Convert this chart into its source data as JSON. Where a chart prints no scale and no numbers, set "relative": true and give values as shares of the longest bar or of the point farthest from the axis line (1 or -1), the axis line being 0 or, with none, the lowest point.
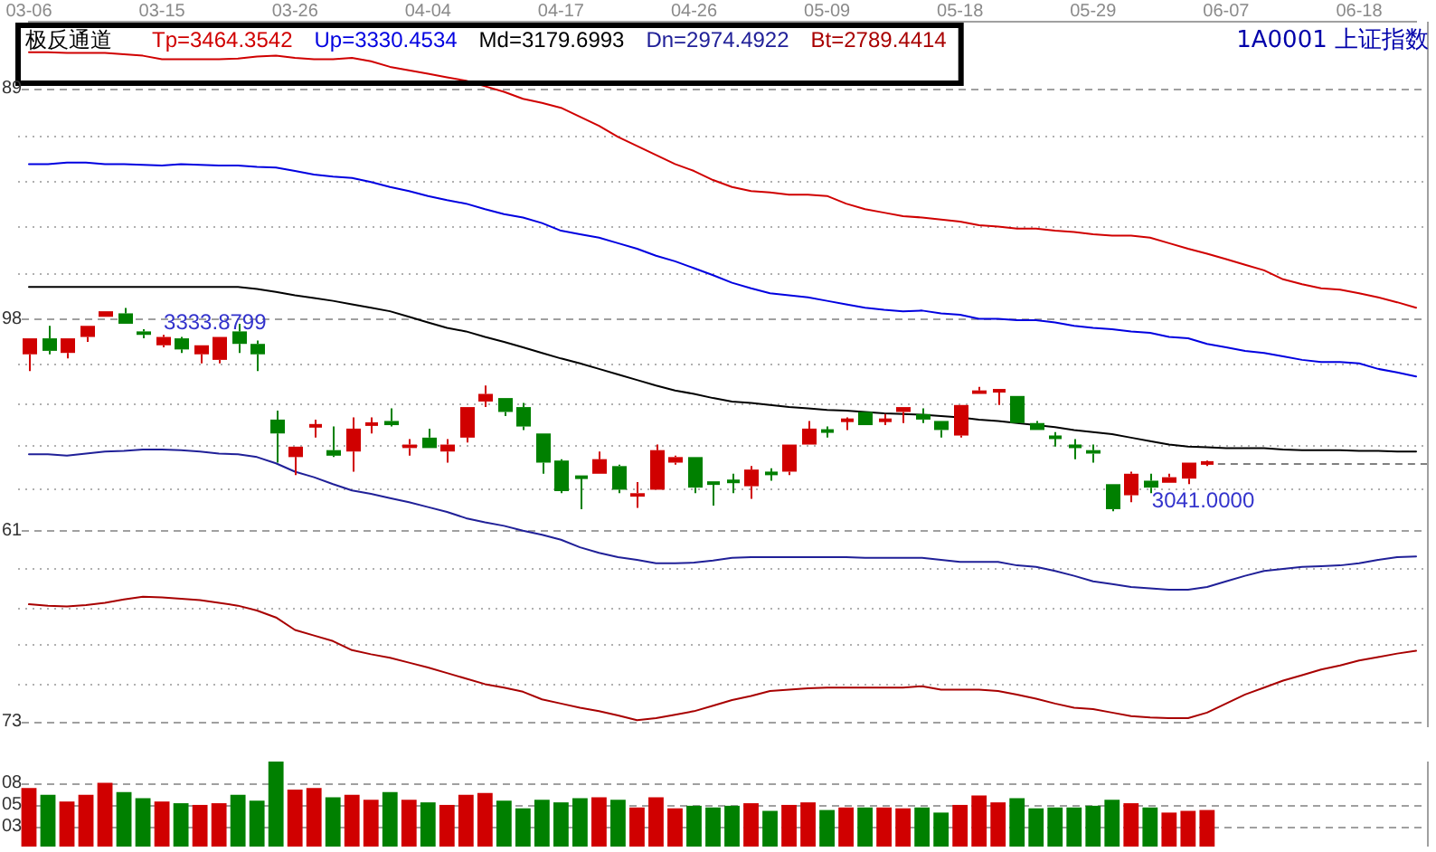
{
  "chart_data": [
    {
      "type": "candlestick",
      "title": "极反通道",
      "categories": [
        "03-06",
        null,
        null,
        null,
        null,
        null,
        null,
        "03-15",
        null,
        null,
        null,
        null,
        null,
        null,
        "03-26",
        null,
        null,
        null,
        null,
        null,
        null,
        "04-04",
        null,
        null,
        null,
        null,
        null,
        null,
        "04-17",
        null,
        null,
        null,
        null,
        null,
        null,
        "04-26",
        null,
        null,
        null,
        null,
        null,
        null,
        "05-09",
        null,
        null,
        null,
        null,
        null,
        null,
        "05-18",
        null,
        null,
        null,
        null,
        null,
        null,
        "05-29",
        null,
        null,
        null,
        null,
        null,
        null,
        "06-07",
        null,
        null,
        null,
        null,
        null,
        null,
        "06-18",
        null,
        null,
        null
      ],
      "ohlc": [
        [
          3267,
          3290,
          3243,
          3290
        ],
        [
          3290,
          3308,
          3267,
          3272
        ],
        [
          3269,
          3290,
          3261,
          3290
        ],
        [
          3292,
          3308,
          3285,
          3308
        ],
        [
          3321,
          3329,
          3321,
          3329
        ],
        [
          3326,
          3333.8799,
          3311,
          3311
        ],
        [
          3300,
          3303,
          3290,
          3295
        ],
        [
          3280,
          3295,
          3277,
          3292
        ],
        [
          3290,
          3292,
          3269,
          3274
        ],
        [
          3267,
          3280,
          3254,
          3280
        ],
        [
          3259,
          3292,
          3254,
          3292
        ],
        [
          3300,
          3311,
          3269,
          3282
        ],
        [
          3282,
          3287,
          3243,
          3267
        ],
        [
          3173,
          3186,
          3111,
          3153
        ],
        [
          3119,
          3134,
          3093,
          3134
        ],
        [
          3163,
          3173,
          3147,
          3165
        ],
        [
          3129,
          3163,
          3119,
          3121
        ],
        [
          3127,
          3176,
          3098,
          3160
        ],
        [
          3165,
          3176,
          3153,
          3168
        ],
        [
          3171,
          3189,
          3163,
          3165
        ],
        [
          3132,
          3145,
          3121,
          3137
        ],
        [
          3147,
          3160,
          3132,
          3132
        ],
        [
          3127,
          3145,
          3111,
          3137
        ],
        [
          3147,
          3191,
          3140,
          3191
        ],
        [
          3199,
          3222,
          3191,
          3210
        ],
        [
          3204,
          3204,
          3178,
          3184
        ],
        [
          3191,
          3197,
          3158,
          3163
        ],
        [
          3153,
          3153,
          3095,
          3111
        ],
        [
          3114,
          3116,
          3067,
          3070
        ],
        [
          3091,
          3091,
          3044,
          3089
        ],
        [
          3095,
          3127,
          3095,
          3116
        ],
        [
          3106,
          3108,
          3067,
          3072
        ],
        [
          3062,
          3083,
          3046,
          3067
        ],
        [
          3072,
          3137,
          3072,
          3129
        ],
        [
          3111,
          3121,
          3108,
          3119
        ],
        [
          3119,
          3119,
          3067,
          3075
        ],
        [
          3083,
          3083,
          3049,
          3080
        ],
        [
          3085,
          3095,
          3067,
          3083
        ],
        [
          3077,
          3106,
          3059,
          3101
        ],
        [
          3096,
          3103,
          3085,
          3095
        ],
        [
          3098,
          3137,
          3093,
          3137
        ],
        [
          3137,
          3171,
          3137,
          3160
        ],
        [
          3158,
          3163,
          3147,
          3155
        ],
        [
          3171,
          3176,
          3158,
          3173
        ],
        [
          3184,
          3184,
          3165,
          3165
        ],
        [
          3171,
          3181,
          3165,
          3173
        ],
        [
          3184,
          3191,
          3168,
          3191
        ],
        [
          3181,
          3189,
          3168,
          3173
        ],
        [
          3171,
          3171,
          3147,
          3158
        ],
        [
          3150,
          3194,
          3147,
          3194
        ],
        [
          3210,
          3220,
          3210,
          3215
        ],
        [
          3214,
          3215,
          3194,
          3215
        ],
        [
          3207,
          3207,
          3168,
          3168
        ],
        [
          3168,
          3171,
          3158,
          3158
        ],
        [
          3148,
          3155,
          3134,
          3147
        ],
        [
          3135,
          3145,
          3116,
          3134
        ],
        [
          3129,
          3137,
          3111,
          3124
        ],
        [
          3080,
          3080,
          3041,
          3044
        ],
        [
          3064,
          3098,
          3054,
          3095
        ],
        [
          3085,
          3095,
          3067,
          3075
        ],
        [
          3082,
          3095,
          3082,
          3090
        ],
        [
          3088,
          3111,
          3080,
          3111
        ],
        [
          3110,
          3114,
          3106,
          3111
        ],
        null,
        null,
        null,
        null,
        null,
        null,
        null,
        null,
        null,
        null,
        null
      ],
      "colors": [
        "#d00000",
        "#008000",
        "#d00000",
        "#d00000",
        "#d00000",
        "#008000",
        "#008000",
        "#d00000",
        "#008000",
        "#d00000",
        "#d00000",
        "#008000",
        "#008000",
        "#008000",
        "#d00000",
        "#d00000",
        "#008000",
        "#d00000",
        "#d00000",
        "#008000",
        "#d00000",
        "#008000",
        "#d00000",
        "#d00000",
        "#d00000",
        "#008000",
        "#008000",
        "#008000",
        "#008000",
        "#008000",
        "#d00000",
        "#008000",
        "#d00000",
        "#d00000",
        "#d00000",
        "#008000",
        "#008000",
        "#008000",
        "#d00000",
        "#008000",
        "#d00000",
        "#d00000",
        "#008000",
        "#d00000",
        "#008000",
        "#d00000",
        "#d00000",
        "#008000",
        "#008000",
        "#d00000",
        "#d00000",
        "#d00000",
        "#008000",
        "#008000",
        "#008000",
        "#008000",
        "#008000",
        "#008000",
        "#d00000",
        "#008000",
        "#d00000",
        "#d00000",
        "#d00000",
        null,
        null,
        null,
        null,
        null,
        null,
        null,
        null,
        null,
        null,
        null
      ],
      "series": [
        {
          "type": "line",
          "name": "Tp=3464.3542",
          "color": "#d00000",
          "values": [
            3702,
            3702,
            3701,
            3701,
            3701,
            3699,
            3697,
            3692,
            3692,
            3692,
            3692,
            3693,
            3696,
            3697,
            3694,
            3692,
            3692,
            3694,
            3689,
            3681,
            3676,
            3671,
            3666,
            3661,
            3653,
            3645,
            3635,
            3629,
            3622,
            3609,
            3596,
            3580,
            3567,
            3554,
            3541,
            3531,
            3518,
            3508,
            3502,
            3500,
            3497,
            3497,
            3495,
            3484,
            3476,
            3471,
            3466,
            3464,
            3461,
            3458,
            3453,
            3451,
            3448,
            3448,
            3445,
            3443,
            3440,
            3438,
            3438,
            3435,
            3427,
            3419,
            3412,
            3404,
            3396,
            3388,
            3375,
            3368,
            3362,
            3360,
            3355,
            3349,
            3342,
            3334
          ]
        },
        {
          "type": "line",
          "name": "Up=3330.4534",
          "color": "#0000e0",
          "values": [
            3541,
            3541,
            3543,
            3543,
            3541,
            3541,
            3540,
            3539,
            3541,
            3540,
            3539,
            3539,
            3537,
            3536,
            3531,
            3526,
            3523,
            3521,
            3515,
            3508,
            3502,
            3495,
            3489,
            3484,
            3476,
            3469,
            3464,
            3456,
            3445,
            3440,
            3435,
            3427,
            3419,
            3409,
            3401,
            3391,
            3381,
            3370,
            3362,
            3355,
            3352,
            3349,
            3344,
            3339,
            3334,
            3331,
            3329,
            3330,
            3326,
            3324,
            3318,
            3318,
            3316,
            3316,
            3313,
            3308,
            3305,
            3303,
            3300,
            3298,
            3292,
            3290,
            3282,
            3277,
            3272,
            3269,
            3264,
            3259,
            3256,
            3256,
            3254,
            3246,
            3241,
            3235
          ]
        },
        {
          "type": "line",
          "name": "Md=3179.6993",
          "color": "#000000",
          "values": [
            3364,
            3364,
            3364,
            3364,
            3364,
            3364,
            3364,
            3364,
            3364,
            3364,
            3364,
            3364,
            3361,
            3357,
            3352,
            3348,
            3344,
            3339,
            3334,
            3329,
            3321,
            3313,
            3305,
            3300,
            3292,
            3285,
            3277,
            3269,
            3261,
            3254,
            3246,
            3238,
            3230,
            3222,
            3215,
            3210,
            3204,
            3199,
            3197,
            3194,
            3191,
            3189,
            3187,
            3186,
            3184,
            3182,
            3181,
            3180,
            3178,
            3176,
            3173,
            3171,
            3168,
            3165,
            3162,
            3158,
            3155,
            3152,
            3147,
            3142,
            3137,
            3134,
            3133,
            3132,
            3132,
            3132,
            3130,
            3129,
            3129,
            3129,
            3128,
            3128,
            3127,
            3127
          ]
        },
        {
          "type": "line",
          "name": "Dn=2974.4922",
          "color": "#202098",
          "values": [
            3123,
            3123,
            3121,
            3124,
            3127,
            3128,
            3130,
            3130,
            3129,
            3127,
            3124,
            3123,
            3119,
            3110,
            3098,
            3090,
            3080,
            3071,
            3066,
            3060,
            3054,
            3047,
            3040,
            3031,
            3025,
            3020,
            3013,
            3007,
            3000,
            2989,
            2981,
            2975,
            2971,
            2966,
            2966,
            2967,
            2970,
            2974,
            2975,
            2975,
            2975,
            2975,
            2975,
            2975,
            2974,
            2974,
            2974,
            2974,
            2971,
            2968,
            2968,
            2968,
            2963,
            2961,
            2955,
            2948,
            2940,
            2936,
            2932,
            2930,
            2928,
            2928,
            2932,
            2940,
            2948,
            2955,
            2958,
            2961,
            2962,
            2963,
            2966,
            2971,
            2975,
            2976
          ]
        },
        {
          "type": "line",
          "name": "Bt=2789.4414",
          "color": "#a80000",
          "values": [
            2907,
            2905,
            2904,
            2906,
            2909,
            2914,
            2918,
            2917,
            2915,
            2913,
            2909,
            2905,
            2898,
            2888,
            2870,
            2862,
            2854,
            2841,
            2835,
            2830,
            2823,
            2816,
            2808,
            2800,
            2792,
            2787,
            2781,
            2770,
            2764,
            2758,
            2753,
            2747,
            2740,
            2743,
            2748,
            2753,
            2761,
            2769,
            2775,
            2782,
            2784,
            2786,
            2787,
            2787,
            2787,
            2787,
            2787,
            2789,
            2784,
            2784,
            2784,
            2782,
            2777,
            2771,
            2764,
            2758,
            2756,
            2751,
            2746,
            2744,
            2743,
            2743,
            2751,
            2764,
            2777,
            2787,
            2797,
            2805,
            2813,
            2819,
            2826,
            2831,
            2836,
            2840
          ]
        }
      ],
      "ylim": [
        2730,
        3746
      ],
      "yticks": [
        {
          "value": 2792,
          "label": null
        },
        {
          "value": 2849,
          "label": null
        },
        {
          "value": 2901,
          "label": null
        },
        {
          "value": 2958,
          "label": null
        },
        {
          "value": 3075,
          "label": null
        },
        {
          "value": 3137,
          "label": null
        },
        {
          "value": 3197,
          "label": null
        },
        {
          "value": 3254,
          "label": null
        },
        {
          "value": 3383,
          "label": null
        },
        {
          "value": 3451,
          "label": null
        },
        {
          "value": 3518,
          "label": null
        },
        {
          "value": 3583,
          "label": null
        }
      ],
      "tick_labels": "x",
      "grid": "y",
      "legend": "top left",
      "ref_lines": [
        {
          "axis": "y",
          "value": 3650,
          "color": "#a0a0a0",
          "line_style": "dashed"
        },
        {
          "axis": "y",
          "value": 3318,
          "color": "#a0a0a0",
          "line_style": "dashed"
        },
        {
          "axis": "y",
          "value": 3013,
          "color": "#a0a0a0",
          "line_style": "dashed"
        },
        {
          "axis": "y",
          "value": 2738,
          "color": "#a0a0a0",
          "line_style": "dashed"
        },
        {
          "axis": "y",
          "value": 3111,
          "color": "#808080",
          "line_style": "dashed"
        }
      ],
      "annotations": [
        "1A0001 上证指数",
        "89",
        "98",
        "61",
        "73",
        "3333.8799",
        "3041.0000"
      ]
    },
    {
      "type": "bar",
      "relative": true,
      "categories": [
        null,
        null,
        null,
        null,
        null,
        null,
        null,
        null,
        null,
        null,
        null,
        null,
        null,
        null,
        null,
        null,
        null,
        null,
        null,
        null,
        null,
        null,
        null,
        null,
        null,
        null,
        null,
        null,
        null,
        null,
        null,
        null,
        null,
        null,
        null,
        null,
        null,
        null,
        null,
        null,
        null,
        null,
        null,
        null,
        null,
        null,
        null,
        null,
        null,
        null,
        null,
        null,
        null,
        null,
        null,
        null,
        null,
        null,
        null,
        null,
        null,
        null,
        null,
        null,
        null,
        null,
        null,
        null,
        null,
        null,
        null,
        null,
        null,
        null
      ],
      "values": [
        0.69,
        0.61,
        0.53,
        0.61,
        0.75,
        0.64,
        0.57,
        0.53,
        0.51,
        0.49,
        0.51,
        0.61,
        0.54,
        1,
        0.67,
        0.69,
        0.58,
        0.61,
        0.55,
        0.64,
        0.55,
        0.52,
        0.49,
        0.61,
        0.63,
        0.54,
        0.45,
        0.55,
        0.52,
        0.57,
        0.58,
        0.55,
        0.46,
        0.58,
        0.45,
        0.48,
        0.46,
        0.48,
        0.51,
        0.42,
        0.49,
        0.52,
        0.43,
        0.46,
        0.46,
        0.46,
        0.45,
        0.46,
        0.4,
        0.49,
        0.6,
        0.52,
        0.57,
        0.45,
        0.46,
        0.46,
        0.48,
        0.55,
        0.51,
        0.46,
        0.4,
        0.42,
        0.43,
        null,
        null,
        null,
        null,
        null,
        null,
        null,
        null,
        null,
        null,
        null
      ],
      "colors": [
        "#d00000",
        "#008000",
        "#d00000",
        "#d00000",
        "#d00000",
        "#008000",
        "#008000",
        "#d00000",
        "#008000",
        "#d00000",
        "#d00000",
        "#008000",
        "#008000",
        "#008000",
        "#d00000",
        "#d00000",
        "#008000",
        "#d00000",
        "#d00000",
        "#008000",
        "#d00000",
        "#008000",
        "#d00000",
        "#d00000",
        "#d00000",
        "#008000",
        "#008000",
        "#008000",
        "#008000",
        "#008000",
        "#d00000",
        "#008000",
        "#d00000",
        "#d00000",
        "#d00000",
        "#008000",
        "#008000",
        "#008000",
        "#d00000",
        "#008000",
        "#d00000",
        "#d00000",
        "#008000",
        "#d00000",
        "#008000",
        "#d00000",
        "#d00000",
        "#008000",
        "#008000",
        "#d00000",
        "#d00000",
        "#d00000",
        "#008000",
        "#008000",
        "#008000",
        "#008000",
        "#008000",
        "#008000",
        "#d00000",
        "#008000",
        "#d00000",
        "#d00000",
        "#d00000",
        null,
        null,
        null,
        null,
        null,
        null,
        null,
        null,
        null,
        null,
        null
      ],
      "ref_lines": [
        {
          "axis": "y",
          "value": 0.75,
          "color": "#a0a0a0",
          "line_style": "dashed"
        },
        {
          "axis": "y",
          "value": 0.49,
          "color": "#a0a0a0",
          "line_style": "dashed"
        },
        {
          "axis": "y",
          "value": 0.24,
          "color": "#a0a0a0",
          "line_style": "dashed"
        }
      ],
      "annotations": [
        "08",
        "05",
        "03"
      ]
    }
  ]
}
